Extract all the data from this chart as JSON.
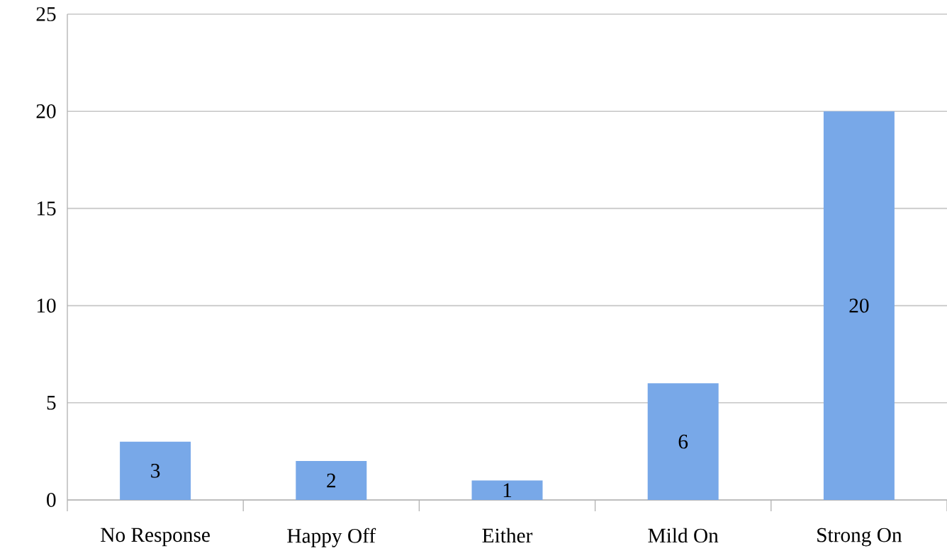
{
  "chart_data": {
    "type": "bar",
    "categories": [
      "No Response",
      "Happy Off",
      "Either",
      "Mild On",
      "Strong On"
    ],
    "values": [
      3,
      2,
      1,
      6,
      20
    ],
    "color": "#78a8e8",
    "ylim": [
      0,
      25
    ],
    "yticks": [
      0,
      5,
      10,
      15,
      20,
      25
    ],
    "grid": "y",
    "data_labels": true
  }
}
